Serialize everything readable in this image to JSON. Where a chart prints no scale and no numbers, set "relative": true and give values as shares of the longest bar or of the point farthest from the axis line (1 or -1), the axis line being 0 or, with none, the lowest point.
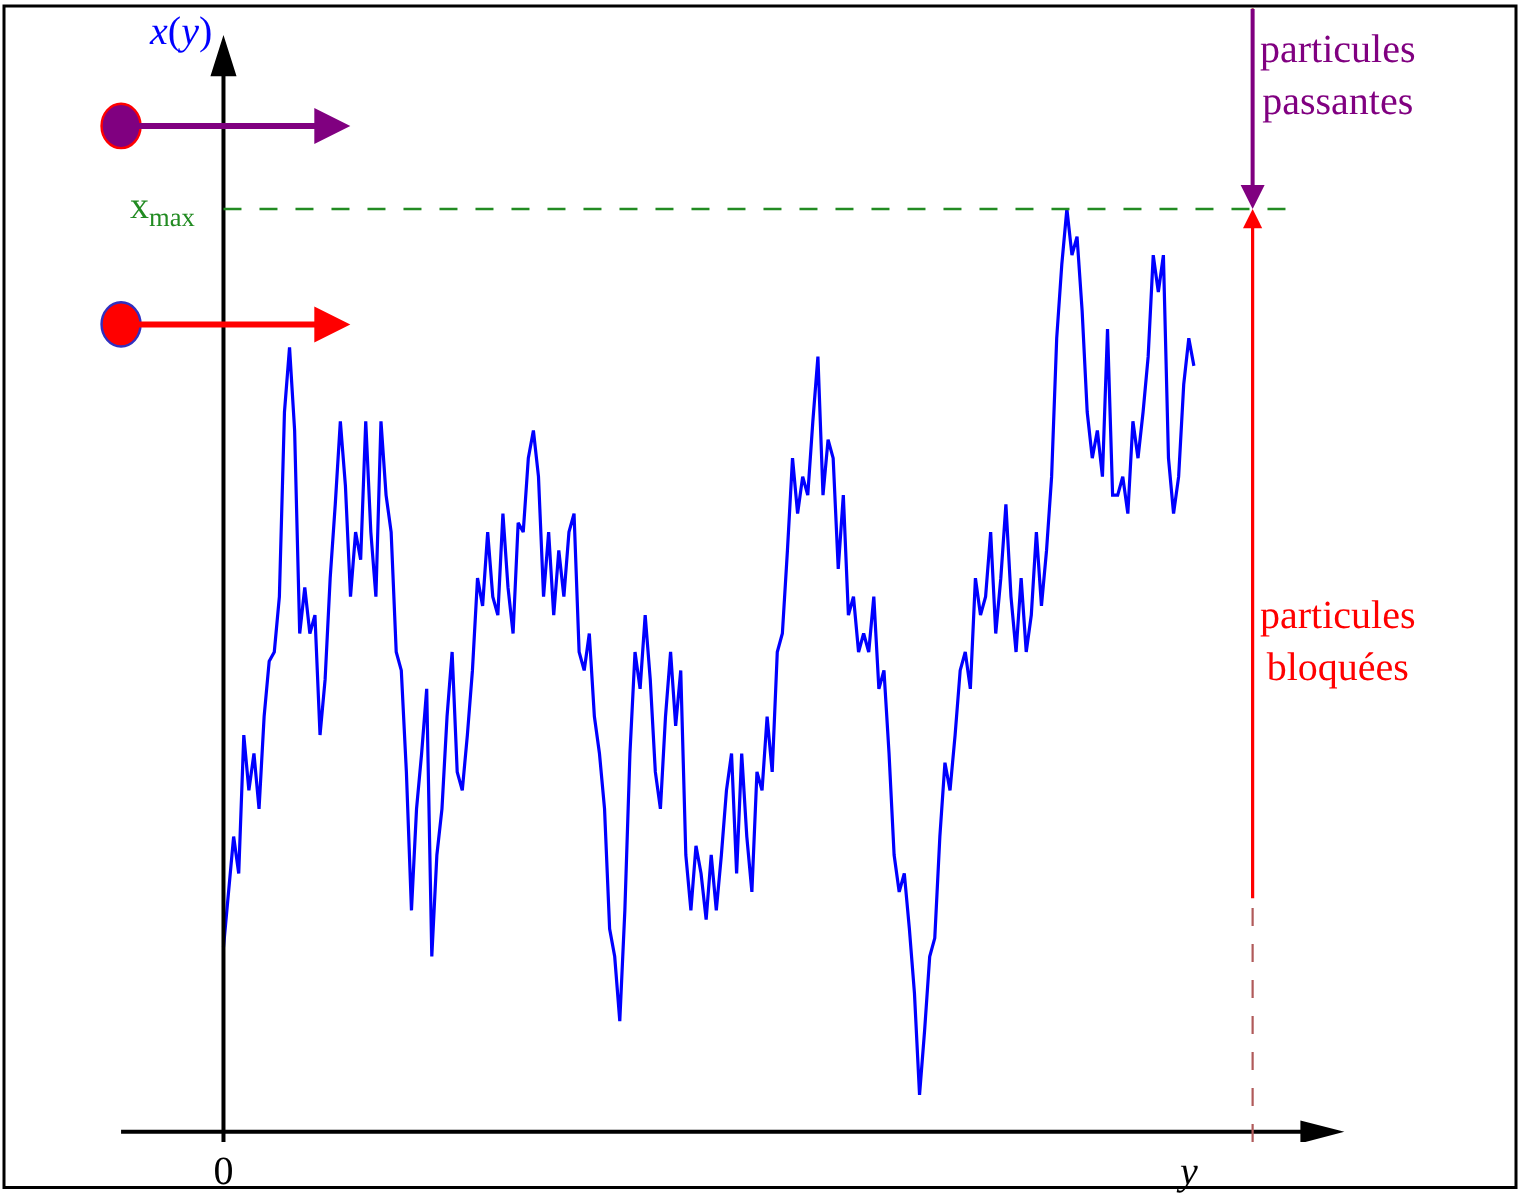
{
  "chart_data": {
    "type": "line",
    "relative": true,
    "ylabel": "x(y)",
    "categories": [
      "0",
      null,
      null,
      null,
      null,
      null,
      null,
      null,
      null,
      null,
      null,
      null,
      null,
      null,
      null,
      null,
      null,
      null,
      null,
      null,
      null,
      null,
      null,
      null,
      null,
      null,
      null,
      null,
      null,
      null,
      null,
      null,
      null,
      null,
      null,
      null,
      null,
      null,
      null,
      null,
      null,
      null,
      null,
      null,
      null,
      null,
      null,
      null,
      null,
      null,
      null,
      null,
      null,
      null,
      null,
      null,
      null,
      null,
      null,
      null,
      null,
      null,
      null,
      null,
      null,
      null,
      null,
      null,
      null,
      null,
      null,
      null,
      null,
      null,
      null,
      null,
      null,
      null,
      null,
      null,
      null,
      null,
      null,
      null,
      null,
      null,
      null,
      null,
      null,
      null,
      null,
      null,
      null,
      null,
      null,
      null,
      null,
      null,
      null,
      null,
      null,
      null,
      null,
      null,
      null,
      null,
      null,
      null,
      null,
      null,
      null,
      null,
      null,
      null,
      null,
      null,
      null,
      null,
      null,
      null,
      null,
      null,
      null,
      null,
      null,
      null,
      null,
      null,
      null,
      null,
      null,
      null,
      null,
      null,
      null,
      null,
      null,
      null,
      null,
      null,
      null,
      null,
      null,
      null,
      null,
      null,
      null,
      null,
      null,
      null,
      null,
      null,
      null,
      null,
      null,
      null,
      null,
      null,
      null,
      null,
      null,
      null,
      null,
      null,
      null,
      null,
      null,
      null,
      null,
      null,
      null,
      null,
      null,
      null,
      null,
      null,
      null,
      null,
      null,
      null,
      null,
      null,
      null,
      null,
      null,
      null,
      null,
      null,
      null,
      null,
      "y",
      null
    ],
    "ref_lines": [
      {
        "axis": "y",
        "value": 1,
        "label": "x$_{max}$",
        "color": "#228b22",
        "line_style": "dashed"
      }
    ],
    "annotations": [
      "particules\npassantes",
      "particules\nbloquées"
    ],
    "series": [
      {
        "color": "#0000ff",
        "values": [
          0.2,
          0.26,
          0.32,
          0.28,
          0.43,
          0.37,
          0.41,
          0.35,
          0.45,
          0.51,
          0.52,
          0.58,
          0.78,
          0.85,
          0.76,
          0.54,
          0.59,
          0.54,
          0.56,
          0.43,
          0.49,
          0.6,
          0.68,
          0.77,
          0.7,
          0.58,
          0.65,
          0.62,
          0.77,
          0.65,
          0.58,
          0.77,
          0.69,
          0.65,
          0.52,
          0.5,
          0.39,
          0.24,
          0.35,
          0.41,
          0.48,
          0.19,
          0.3,
          0.35,
          0.45,
          0.52,
          0.39,
          0.37,
          0.43,
          0.5,
          0.6,
          0.57,
          0.65,
          0.58,
          0.56,
          0.67,
          0.59,
          0.54,
          0.66,
          0.65,
          0.73,
          0.76,
          0.71,
          0.58,
          0.65,
          0.56,
          0.63,
          0.58,
          0.65,
          0.67,
          0.52,
          0.5,
          0.54,
          0.45,
          0.41,
          0.35,
          0.22,
          0.19,
          0.12,
          0.24,
          0.41,
          0.52,
          0.48,
          0.56,
          0.49,
          0.39,
          0.35,
          0.45,
          0.52,
          0.44,
          0.5,
          0.3,
          0.24,
          0.31,
          0.28,
          0.23,
          0.3,
          0.24,
          0.3,
          0.37,
          0.41,
          0.28,
          0.41,
          0.32,
          0.26,
          0.39,
          0.37,
          0.45,
          0.39,
          0.52,
          0.54,
          0.63,
          0.73,
          0.67,
          0.71,
          0.69,
          0.77,
          0.84,
          0.69,
          0.75,
          0.73,
          0.61,
          0.69,
          0.56,
          0.58,
          0.52,
          0.54,
          0.52,
          0.58,
          0.48,
          0.5,
          0.41,
          0.3,
          0.26,
          0.28,
          0.22,
          0.15,
          0.04,
          0.11,
          0.19,
          0.21,
          0.32,
          0.4,
          0.37,
          0.43,
          0.5,
          0.52,
          0.48,
          0.6,
          0.56,
          0.58,
          0.65,
          0.54,
          0.6,
          0.68,
          0.58,
          0.52,
          0.6,
          0.52,
          0.56,
          0.65,
          0.57,
          0.63,
          0.71,
          0.86,
          0.94,
          1.0,
          0.95,
          0.97,
          0.89,
          0.78,
          0.73,
          0.76,
          0.71,
          0.87,
          0.69,
          0.69,
          0.71,
          0.67,
          0.77,
          0.73,
          0.78,
          0.84,
          0.95,
          0.91,
          0.95,
          0.73,
          0.67,
          0.71,
          0.81,
          0.86,
          0.83
        ]
      }
    ]
  }
}
